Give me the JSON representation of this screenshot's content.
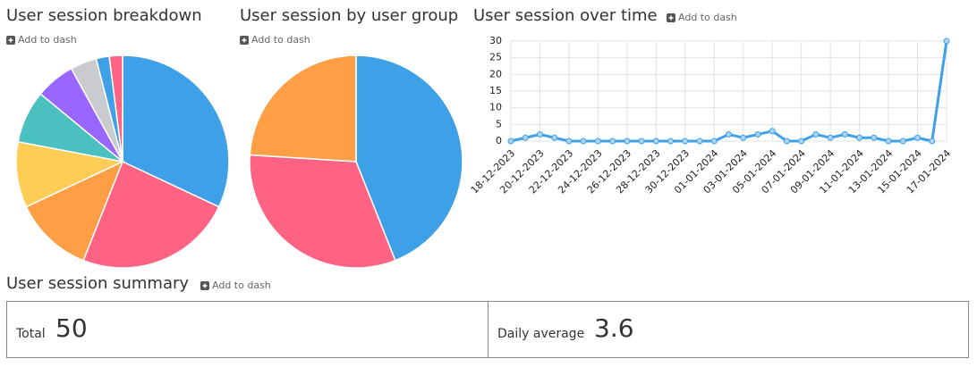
{
  "chart_data": [
    {
      "type": "pie",
      "title": "User session breakdown",
      "action": "Add to dash",
      "values": [
        16,
        12,
        6,
        5,
        4,
        3,
        2,
        1,
        1
      ],
      "colors": [
        "#3ea1e8",
        "#ff6384",
        "#ff9f45",
        "#ffcd56",
        "#4bc0c0",
        "#9966ff",
        "#c9cbcf",
        "#3ea1e8",
        "#ff6384"
      ]
    },
    {
      "type": "pie",
      "title": "User session by user group",
      "action": "Add to dash",
      "values": [
        22,
        16,
        12
      ],
      "colors": [
        "#3ea1e8",
        "#ff6384",
        "#ff9f45"
      ]
    },
    {
      "type": "line",
      "title": "User session over time",
      "action": "Add to dash",
      "categories": [
        "18-12-2023",
        null,
        "20-12-2023",
        null,
        "22-12-2023",
        null,
        "24-12-2023",
        null,
        "26-12-2023",
        null,
        "28-12-2023",
        null,
        "30-12-2023",
        null,
        "01-01-2024",
        null,
        "03-01-2024",
        null,
        "05-01-2024",
        null,
        "07-01-2024",
        null,
        "09-01-2024",
        null,
        "11-01-2024",
        null,
        "13-01-2024",
        null,
        "15-01-2024",
        null,
        "17-01-2024"
      ],
      "values": [
        0,
        1,
        2,
        1,
        0,
        0,
        0,
        0,
        0,
        0,
        0,
        0,
        0,
        0,
        0,
        2,
        1,
        2,
        3,
        0,
        0,
        2,
        1,
        2,
        1,
        1,
        0,
        0,
        1,
        0,
        30
      ],
      "color": "#3ea1e8",
      "ylim": [
        0,
        30
      ],
      "yticks": [
        0,
        5,
        10,
        15,
        20,
        25,
        30
      ],
      "grid": true
    }
  ],
  "summary": {
    "title": "User session summary",
    "action": "Add to dash",
    "items": [
      {
        "label": "Total",
        "value": 50
      },
      {
        "label": "Daily average",
        "value": 3.6
      }
    ]
  }
}
